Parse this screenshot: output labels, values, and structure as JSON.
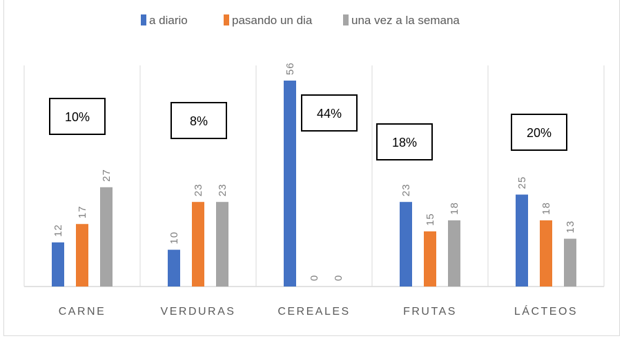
{
  "chart_data": {
    "type": "bar",
    "title": "",
    "xlabel": "",
    "ylabel": "",
    "ylim": [
      0,
      56
    ],
    "grid": "vertical category separators",
    "legend_position": "top",
    "categories": [
      "CARNE",
      "VERDURAS",
      "CEREALES",
      "FRUTAS",
      "LÁCTEOS"
    ],
    "series": [
      {
        "name": "a diario",
        "color": "#4472c4",
        "values": [
          12,
          10,
          56,
          23,
          25
        ]
      },
      {
        "name": "pasando un dia",
        "color": "#ed7d31",
        "values": [
          17,
          23,
          0,
          15,
          18
        ]
      },
      {
        "name": "una vez a la semana",
        "color": "#a5a5a5",
        "values": [
          27,
          23,
          0,
          18,
          13
        ]
      }
    ],
    "annotations": [
      "10%",
      "8%",
      "44%",
      "18%",
      "20%"
    ]
  }
}
